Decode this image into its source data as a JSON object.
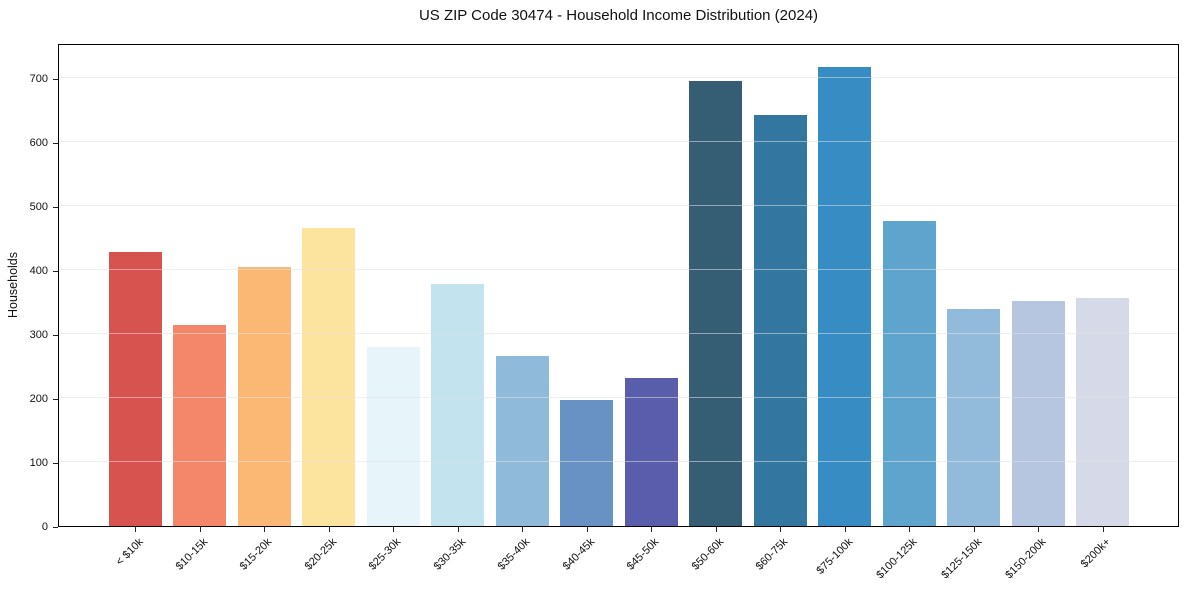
{
  "chart_data": {
    "type": "bar",
    "title": "US ZIP Code 30474 - Household Income Distribution (2024)",
    "xlabel": "",
    "ylabel": "Households",
    "categories": [
      "< $10k",
      "$10-15k",
      "$15-20k",
      "$20-25k",
      "$25-30k",
      "$30-35k",
      "$35-40k",
      "$40-45k",
      "$45-50k",
      "$50-60k",
      "$60-75k",
      "$75-100k",
      "$100-125k",
      "$125-150k",
      "$150-200k",
      "$200k+"
    ],
    "values": [
      428,
      314,
      405,
      466,
      280,
      378,
      266,
      197,
      232,
      695,
      642,
      718,
      477,
      339,
      352,
      356
    ],
    "bar_colors": [
      "#d6534f",
      "#f4866a",
      "#fab874",
      "#fde49e",
      "#e7f4f9",
      "#c3e3ef",
      "#90bad9",
      "#6891c4",
      "#5a5dab",
      "#355e74",
      "#33769f",
      "#368cc3",
      "#5fa4cd",
      "#92bbdb",
      "#b6c6e0",
      "#d6d9e7"
    ],
    "ylim": [
      0,
      755
    ],
    "yticks": [
      0,
      100,
      200,
      300,
      400,
      500,
      600,
      700
    ],
    "grid": "horizontal",
    "grid_color": "#e8e8e8",
    "spine_color": "#000000",
    "background": "#ffffff",
    "legend": "none"
  }
}
